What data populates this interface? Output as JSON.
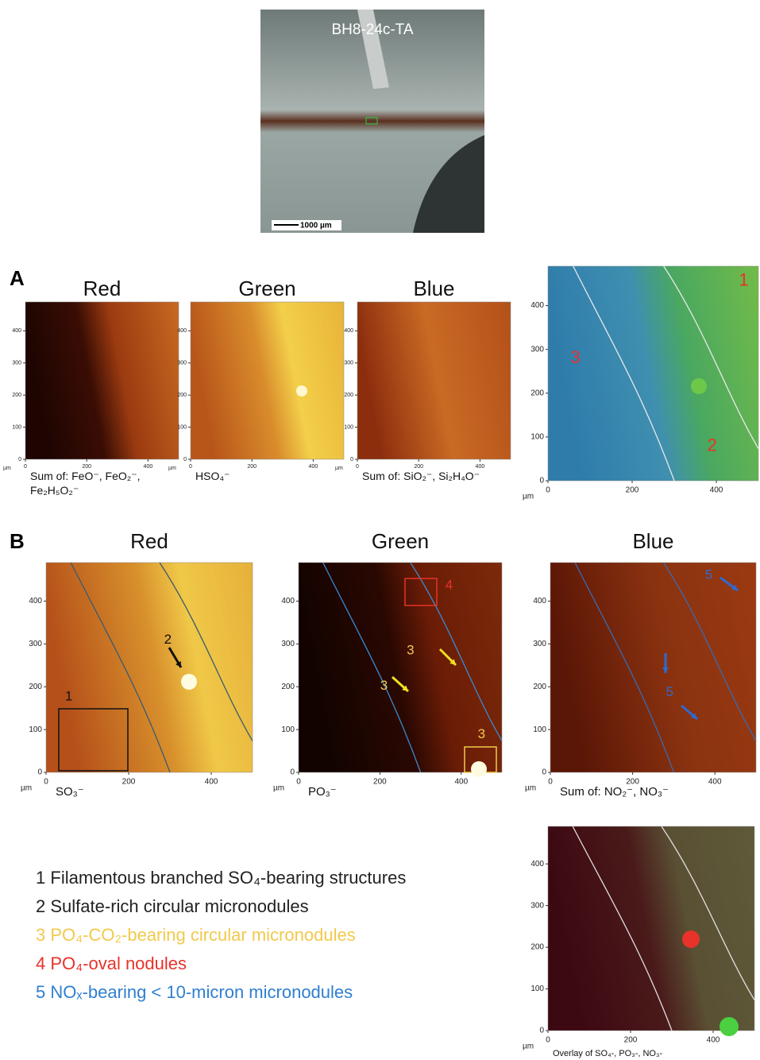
{
  "photo": {
    "label": "BH8-24c-TA",
    "scale_bar": "1000 µm"
  },
  "axes": {
    "unit": "µm",
    "x_ticks": [
      0,
      200,
      400
    ],
    "y_ticks": [
      0,
      100,
      200,
      300,
      400
    ]
  },
  "panel_a": {
    "letter": "A",
    "maps": [
      {
        "title": "Red",
        "caption": "Sum of: FeO⁻, FeO₂⁻, Fe₂H₅O₂⁻"
      },
      {
        "title": "Green",
        "caption": "HSO₄⁻"
      },
      {
        "title": "Blue",
        "caption": "Sum of: SiO₂⁻, Si₂H₄O⁻"
      }
    ],
    "overlay": {
      "annotations": [
        "1",
        "2",
        "3"
      ]
    }
  },
  "panel_b": {
    "letter": "B",
    "maps": [
      {
        "title": "Red",
        "caption": "SO₃⁻",
        "annotations": [
          "1",
          "2"
        ]
      },
      {
        "title": "Green",
        "caption": "PO₃⁻",
        "annotations": [
          "4",
          "3",
          "3",
          "3"
        ]
      },
      {
        "title": "Blue",
        "caption": "Sum of: NO₂⁻, NO₃⁻",
        "annotations": [
          "5",
          "5"
        ]
      }
    ],
    "overlay": {
      "caption": "Overlay of SO₄-, PO₃-, NO₃-"
    }
  },
  "legend": [
    {
      "number": "1",
      "text": "Filamentous branched SO₄-bearing structures",
      "color": "#222222"
    },
    {
      "number": "2",
      "text": "Sulfate-rich circular micronodules",
      "color": "#222222"
    },
    {
      "number": "3",
      "text": "PO₄-CO₂-bearing  circular micronodules",
      "color": "#f2c94c"
    },
    {
      "number": "4",
      "text": "PO₄-oval nodules",
      "color": "#e8322a"
    },
    {
      "number": "5",
      "text": "NOₓ-bearing < 10-micron micronodules",
      "color": "#2f7fd0"
    }
  ]
}
